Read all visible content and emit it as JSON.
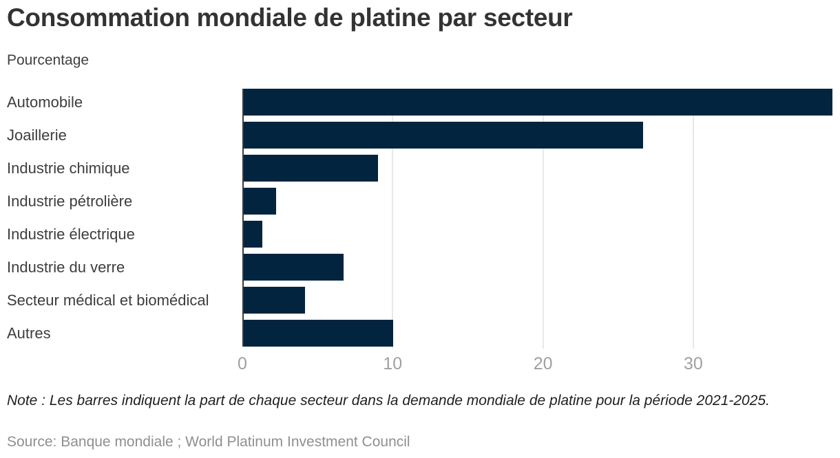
{
  "header": {
    "title": "Consommation mondiale de platine par secteur",
    "subtitle": "Pourcentage"
  },
  "chart_data": {
    "type": "bar",
    "orientation": "horizontal",
    "title": "Consommation mondiale de platine par secteur",
    "xlabel": "",
    "ylabel": "Pourcentage",
    "categories": [
      "Automobile",
      "Joaillerie",
      "Industrie chimique",
      "Industrie pétrolière",
      "Industrie électrique",
      "Industrie du verre",
      "Secteur médical et biomédical",
      "Autres"
    ],
    "values": [
      39.2,
      26.6,
      9.0,
      2.2,
      1.3,
      6.7,
      4.1,
      10.0
    ],
    "xlim": [
      0,
      39.3
    ],
    "xticks": [
      0,
      10,
      20,
      30
    ],
    "grid": "vertical-gridlines-at-xticks",
    "legend": "none",
    "colors": {
      "bar": "#02243f",
      "axis_line": "#3a3a3a",
      "gridline": "#e8e8e8",
      "tick_label": "#a0a0a0",
      "category_label": "#3d3d3d",
      "title": "#333333"
    }
  },
  "footer": {
    "note": "Note : Les barres indiquent la part de chaque secteur dans la demande mondiale de platine pour la période 2021-2025.",
    "source": "Source: Banque mondiale ; World Platinum Investment Council"
  }
}
